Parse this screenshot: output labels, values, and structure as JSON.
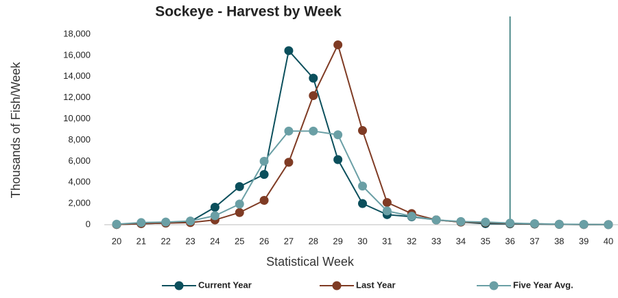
{
  "chart_data": {
    "type": "line",
    "title": "Sockeye - Harvest by Week",
    "x_label": "Statistical Week",
    "y_label": "Thousands of Fish/Week",
    "categories": [
      "20",
      "21",
      "22",
      "23",
      "24",
      "25",
      "26",
      "27",
      "28",
      "29",
      "30",
      "31",
      "32",
      "33",
      "34",
      "35",
      "36",
      "37",
      "38",
      "39",
      "40"
    ],
    "series": [
      {
        "name": "Current Year",
        "color": "#0b4f5c",
        "values": [
          20,
          100,
          150,
          300,
          1650,
          3600,
          4750,
          16450,
          13850,
          6150,
          2000,
          950,
          750,
          450,
          250,
          100,
          80,
          60,
          30,
          20,
          10
        ]
      },
      {
        "name": "Last Year",
        "color": "#7f3b24",
        "values": [
          20,
          100,
          150,
          200,
          450,
          1150,
          2300,
          5900,
          12200,
          17000,
          8900,
          2100,
          1050,
          450,
          250,
          200,
          120,
          80,
          40,
          20,
          10
        ]
      },
      {
        "name": "Five Year Avg.",
        "color": "#6a9fa5",
        "values": [
          50,
          200,
          250,
          350,
          850,
          1950,
          6000,
          8850,
          8850,
          8500,
          3650,
          1300,
          800,
          450,
          300,
          250,
          150,
          100,
          50,
          30,
          10
        ]
      }
    ],
    "ylim": [
      0,
      18000
    ],
    "yticks": [
      0,
      {
        "value": 2000,
        "label": "2,000"
      },
      {
        "value": 4000,
        "label": "4,000"
      },
      {
        "value": 6000,
        "label": "6,000"
      },
      {
        "value": 8000,
        "label": "8,000"
      },
      {
        "value": 10000,
        "label": "10,000"
      },
      {
        "value": 12000,
        "label": "12,000"
      },
      {
        "value": 14000,
        "label": "14,000"
      },
      {
        "value": 16000,
        "label": "16,000"
      },
      {
        "value": 18000,
        "label": "18,000"
      }
    ],
    "reference_line": {
      "x": "36",
      "color": "#1f6b6b"
    },
    "legend": "bottom"
  }
}
